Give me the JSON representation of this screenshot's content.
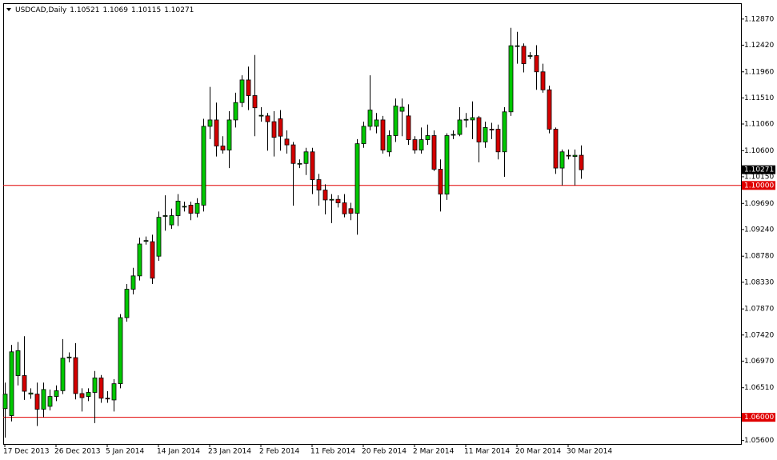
{
  "chart_data": {
    "type": "candlestick",
    "title": "USDCAD,Daily",
    "categories": [
      "17 Dec 2013",
      null,
      null,
      null,
      null,
      null,
      null,
      null,
      "26 Dec 2013",
      null,
      null,
      null,
      null,
      null,
      null,
      null,
      "5 Jan 2014",
      null,
      null,
      null,
      null,
      null,
      null,
      null,
      "14 Jan 2014",
      null,
      null,
      null,
      null,
      null,
      null,
      null,
      "23 Jan 2014",
      null,
      null,
      null,
      null,
      null,
      null,
      null,
      "2 Feb 2014",
      null,
      null,
      null,
      null,
      null,
      null,
      null,
      "11 Feb 2014",
      null,
      null,
      null,
      null,
      null,
      null,
      null,
      "20 Feb 2014",
      null,
      null,
      null,
      null,
      null,
      null,
      null,
      "2 Mar 2014",
      null,
      null,
      null,
      null,
      null,
      null,
      null,
      "11 Mar 2014",
      null,
      null,
      null,
      null,
      null,
      null,
      null,
      "20 Mar 2014",
      null,
      null,
      null,
      null,
      null,
      null,
      null,
      "30 Mar 2014",
      null,
      null
    ],
    "open": [
      1.0615,
      1.0603,
      1.0672,
      1.0672,
      1.064,
      1.064,
      1.0614,
      1.0619,
      1.0636,
      1.0646,
      1.0703,
      1.0703,
      1.0641,
      1.0636,
      1.0643,
      1.0668,
      1.0633,
      1.063,
      1.0658,
      1.0772,
      1.0821,
      1.0844,
      1.0905,
      1.0903,
      1.0878,
      1.0947,
      1.0932,
      1.0948,
      1.0964,
      1.0966,
      1.0952,
      1.0966,
      1.1102,
      1.1113,
      1.1068,
      1.1061,
      1.1113,
      1.1143,
      1.1182,
      1.1155,
      1.112,
      1.112,
      1.111,
      1.1115,
      1.108,
      1.107,
      1.1038,
      1.1038,
      1.1058,
      1.101,
      1.0992,
      1.0976,
      1.0976,
      1.097,
      1.096,
      1.0952,
      1.1072,
      1.1102,
      1.1102,
      1.1113,
      1.1058,
      1.1086,
      1.1128,
      1.112,
      1.1079,
      1.1061,
      1.1079,
      1.1086,
      1.1028,
      1.0985,
      1.1088,
      1.1088,
      1.1113,
      1.1113,
      1.1117,
      1.1075,
      1.1097,
      1.1097,
      1.1058,
      1.1127,
      1.124,
      1.124,
      1.1224,
      1.1224,
      1.1196,
      1.1165,
      1.1097,
      1.103,
      1.1052,
      1.105,
      1.10521
    ],
    "high": [
      1.066,
      1.0725,
      1.073,
      1.074,
      1.065,
      1.066,
      1.066,
      1.0648,
      1.0655,
      1.0735,
      1.0712,
      1.0728,
      1.065,
      1.065,
      1.068,
      1.0673,
      1.0645,
      1.0666,
      1.0778,
      1.083,
      1.0858,
      1.091,
      1.0912,
      1.0915,
      1.0955,
      1.0983,
      1.096,
      1.0985,
      1.0972,
      1.0972,
      1.0978,
      1.1115,
      1.117,
      1.1143,
      1.1085,
      1.1128,
      1.116,
      1.119,
      1.1205,
      1.1225,
      1.1135,
      1.1125,
      1.1128,
      1.113,
      1.1095,
      1.1075,
      1.1045,
      1.1065,
      1.1065,
      1.102,
      1.1002,
      1.0985,
      1.0983,
      1.0985,
      1.097,
      1.108,
      1.111,
      1.119,
      1.1125,
      1.112,
      1.1095,
      1.115,
      1.115,
      1.114,
      1.1085,
      1.11,
      1.1105,
      1.1095,
      1.1045,
      1.109,
      1.1095,
      1.1135,
      1.1125,
      1.1145,
      1.112,
      1.111,
      1.1108,
      1.1105,
      1.1135,
      1.1272,
      1.1265,
      1.1245,
      1.123,
      1.1242,
      1.121,
      1.1172,
      1.11,
      1.1062,
      1.1062,
      1.1062,
      1.1069
    ],
    "low": [
      1.0565,
      1.0593,
      1.0655,
      1.063,
      1.0632,
      1.0585,
      1.06,
      1.0612,
      1.0628,
      1.064,
      1.0695,
      1.0631,
      1.061,
      1.0628,
      1.059,
      1.0625,
      1.0625,
      1.061,
      1.065,
      1.0765,
      1.0812,
      1.0836,
      1.0898,
      1.083,
      1.087,
      1.0922,
      1.0925,
      1.093,
      1.0955,
      1.094,
      1.0945,
      1.0955,
      1.108,
      1.105,
      1.1055,
      1.103,
      1.11,
      1.1135,
      1.113,
      1.1085,
      1.111,
      1.106,
      1.105,
      1.106,
      1.1055,
      1.0965,
      1.103,
      1.1018,
      1.0985,
      1.0965,
      1.095,
      1.0935,
      1.0962,
      1.0945,
      1.094,
      1.0915,
      1.1065,
      1.1095,
      1.109,
      1.1055,
      1.105,
      1.1075,
      1.1085,
      1.107,
      1.1055,
      1.1055,
      1.107,
      1.1025,
      1.0955,
      1.0975,
      1.108,
      1.1085,
      1.11,
      1.108,
      1.104,
      1.1065,
      1.108,
      1.1045,
      1.1015,
      1.112,
      1.121,
      1.1195,
      1.1218,
      1.1165,
      1.116,
      1.109,
      1.102,
      1.1,
      1.1045,
      1.1,
      1.10115
    ],
    "close": [
      1.064,
      1.0713,
      1.0715,
      1.0645,
      1.0642,
      1.0614,
      1.0648,
      1.0636,
      1.0646,
      1.0702,
      1.0704,
      1.0641,
      1.0634,
      1.0643,
      1.0668,
      1.0633,
      1.0632,
      1.0658,
      1.0772,
      1.0821,
      1.0844,
      1.0899,
      1.0905,
      1.084,
      1.0945,
      1.0948,
      1.0948,
      1.0973,
      1.0964,
      1.0952,
      1.0969,
      1.1102,
      1.1113,
      1.1068,
      1.1061,
      1.1113,
      1.1143,
      1.1182,
      1.1155,
      1.1134,
      1.1121,
      1.111,
      1.1083,
      1.1085,
      1.107,
      1.1038,
      1.1038,
      1.1058,
      1.101,
      1.0992,
      1.0975,
      1.0976,
      1.097,
      1.0951,
      1.0952,
      1.1072,
      1.1102,
      1.113,
      1.1113,
      1.1061,
      1.1086,
      1.1137,
      1.1135,
      1.1079,
      1.1061,
      1.1079,
      1.1086,
      1.1028,
      1.0985,
      1.1086,
      1.1088,
      1.1113,
      1.1114,
      1.1117,
      1.1075,
      1.11,
      1.1096,
      1.1058,
      1.1127,
      1.1241,
      1.1241,
      1.121,
      1.1224,
      1.1196,
      1.1165,
      1.1097,
      1.103,
      1.1058,
      1.1051,
      1.1052,
      1.10271
    ],
    "up_color": "#00c800",
    "down_color": "#d40000",
    "ylim": [
      1.0554,
      1.1313
    ],
    "yticks": [
      {
        "value": 1.1287,
        "label": "1.12870"
      },
      {
        "value": 1.1242,
        "label": "1.12420"
      },
      {
        "value": 1.1196,
        "label": "1.11960"
      },
      {
        "value": 1.1151,
        "label": "1.11510"
      },
      {
        "value": 1.1106,
        "label": "1.11060"
      },
      {
        "value": 1.106,
        "label": "1.10600"
      },
      {
        "value": 1.1015,
        "label": "1.10150"
      },
      {
        "value": 1.0969,
        "label": "1.09690"
      },
      {
        "value": 1.0924,
        "label": "1.09240"
      },
      {
        "value": 1.0878,
        "label": "1.08780"
      },
      {
        "value": 1.0833,
        "label": "1.08330"
      },
      {
        "value": 1.0787,
        "label": "1.07870"
      },
      {
        "value": 1.0742,
        "label": "1.07420"
      },
      {
        "value": 1.0697,
        "label": "1.06970"
      },
      {
        "value": 1.0651,
        "label": "1.06510"
      },
      {
        "value": 1.056,
        "label": "1.05600"
      }
    ],
    "hlines": [
      {
        "value": 1.1,
        "label": "1.10000",
        "color": "#e00000"
      },
      {
        "value": 1.06,
        "label": "1.06000",
        "color": "#e00000"
      }
    ]
  }
}
